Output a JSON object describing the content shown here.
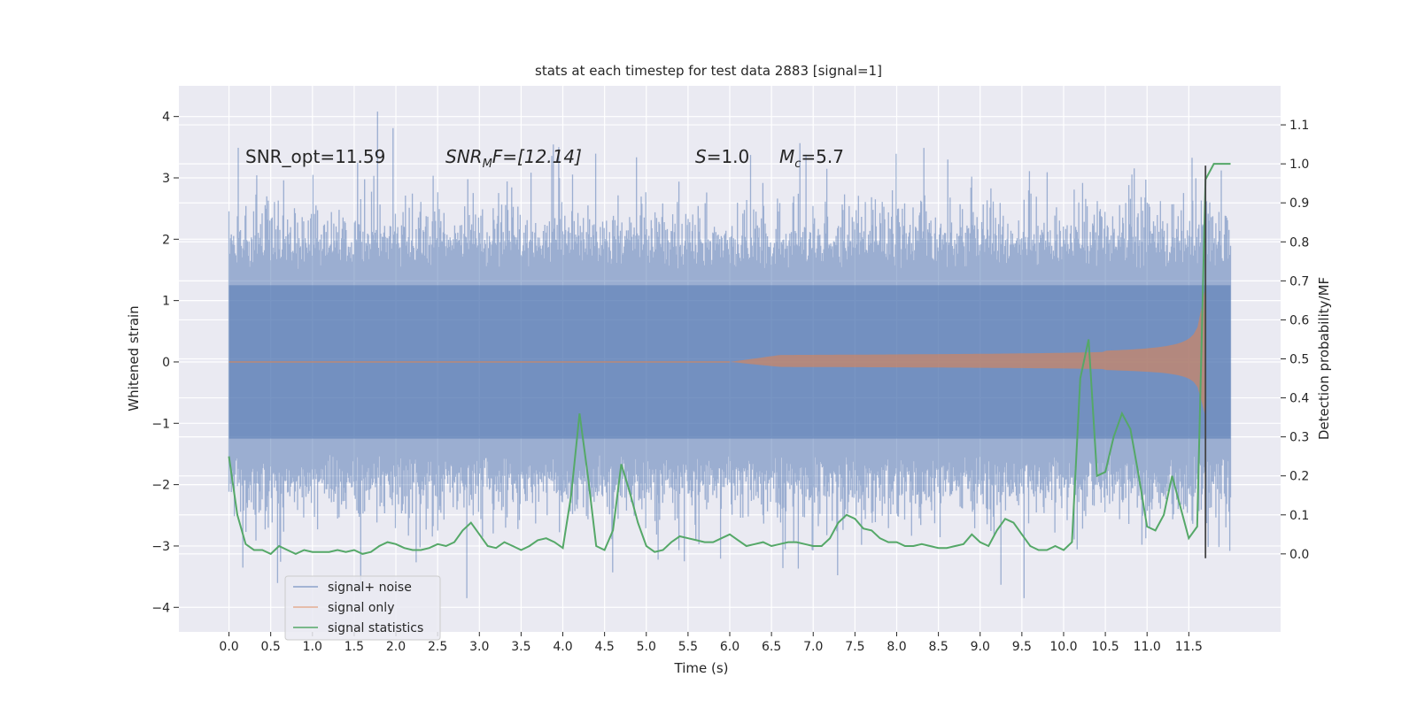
{
  "chart_data": {
    "type": "line",
    "title": "stats at each timestep for test data 2883 [signal=1]",
    "xlabel": "Time (s)",
    "ylabel": "Whitened strain",
    "y2label": "Detection probability/MF",
    "xlim": [
      -0.6,
      12.6
    ],
    "ylim": [
      -4.4,
      4.5
    ],
    "y2lim": [
      -0.2,
      1.2
    ],
    "xticks": [
      0.0,
      0.5,
      1.0,
      1.5,
      2.0,
      2.5,
      3.0,
      3.5,
      4.0,
      4.5,
      5.0,
      5.5,
      6.0,
      6.5,
      7.0,
      7.5,
      8.0,
      8.5,
      9.0,
      9.5,
      10.0,
      10.5,
      11.0,
      11.5
    ],
    "xtick_labels": [
      "0.0",
      "0.5",
      "1.0",
      "1.5",
      "2.0",
      "2.5",
      "3.0",
      "3.5",
      "4.0",
      "4.5",
      "5.0",
      "5.5",
      "6.0",
      "6.5",
      "7.0",
      "7.5",
      "8.0",
      "8.5",
      "9.0",
      "9.5",
      "10.0",
      "10.5",
      "11.0",
      "11.5"
    ],
    "yticks": [
      -4,
      -3,
      -2,
      -1,
      0,
      1,
      2,
      3,
      4
    ],
    "ytick_labels": [
      "−4",
      "−3",
      "−2",
      "−1",
      "0",
      "1",
      "2",
      "3",
      "4"
    ],
    "y2ticks": [
      0.0,
      0.1,
      0.2,
      0.3,
      0.4,
      0.5,
      0.6,
      0.7,
      0.8,
      0.9,
      1.0,
      1.1
    ],
    "y2tick_labels": [
      "0.0",
      "0.1",
      "0.2",
      "0.3",
      "0.4",
      "0.5",
      "0.6",
      "0.7",
      "0.8",
      "0.9",
      "1.0",
      "1.1"
    ],
    "annotations": {
      "snr_opt": "SNR_opt=11.59",
      "snr_mf_main": "SNR",
      "snr_mf_sub": "M",
      "snr_mf_rest": "F=[12.14]",
      "s_var": "S",
      "s_val": "=1.0",
      "mc_var": "M",
      "mc_sub": "c",
      "mc_val": "=5.7"
    },
    "legend": {
      "position": "lower-left",
      "entries": [
        "signal+ noise",
        "signal only",
        "signal statistics"
      ]
    },
    "colors": {
      "noise": "#4c72b0",
      "signal": "#dd8452",
      "stats": "#55a868",
      "marker": "#444444",
      "background": "#eaeaf2"
    },
    "series": [
      {
        "name": "signal+ noise",
        "kind": "noise-envelope",
        "t_start": 0.0,
        "t_end": 12.0,
        "typical_amplitude": 1.5,
        "max": 4.08,
        "min": -3.85
      },
      {
        "name": "signal only",
        "kind": "chirp-envelope",
        "t_start": 6.0,
        "t_merger": 11.7,
        "amplitude_at_merger": 1.3
      },
      {
        "name": "signal statistics",
        "axis": "right",
        "x": [
          0.0,
          0.1,
          0.2,
          0.3,
          0.4,
          0.5,
          0.6,
          0.7,
          0.8,
          0.9,
          1.0,
          1.1,
          1.2,
          1.3,
          1.4,
          1.5,
          1.6,
          1.7,
          1.8,
          1.9,
          2.0,
          2.1,
          2.2,
          2.3,
          2.4,
          2.5,
          2.6,
          2.7,
          2.8,
          2.9,
          3.0,
          3.1,
          3.2,
          3.3,
          3.4,
          3.5,
          3.6,
          3.7,
          3.8,
          3.9,
          4.0,
          4.1,
          4.2,
          4.3,
          4.4,
          4.5,
          4.6,
          4.7,
          4.8,
          4.9,
          5.0,
          5.1,
          5.2,
          5.3,
          5.4,
          5.5,
          5.6,
          5.7,
          5.8,
          5.9,
          6.0,
          6.1,
          6.2,
          6.3,
          6.4,
          6.5,
          6.6,
          6.7,
          6.8,
          6.9,
          7.0,
          7.1,
          7.2,
          7.3,
          7.4,
          7.5,
          7.6,
          7.7,
          7.8,
          7.9,
          8.0,
          8.1,
          8.2,
          8.3,
          8.4,
          8.5,
          8.6,
          8.7,
          8.8,
          8.9,
          9.0,
          9.1,
          9.2,
          9.3,
          9.4,
          9.5,
          9.6,
          9.7,
          9.8,
          9.9,
          10.0,
          10.1,
          10.2,
          10.3,
          10.4,
          10.5,
          10.6,
          10.7,
          10.8,
          10.9,
          11.0,
          11.1,
          11.2,
          11.3,
          11.4,
          11.5,
          11.6,
          11.7,
          11.8,
          11.9,
          12.0
        ],
        "values": [
          0.25,
          0.1,
          0.025,
          0.01,
          0.01,
          0.0,
          0.02,
          0.01,
          0.0,
          0.01,
          0.005,
          0.005,
          0.005,
          0.01,
          0.005,
          0.01,
          0.0,
          0.005,
          0.02,
          0.03,
          0.025,
          0.015,
          0.01,
          0.01,
          0.015,
          0.025,
          0.02,
          0.03,
          0.06,
          0.08,
          0.05,
          0.02,
          0.015,
          0.03,
          0.02,
          0.01,
          0.02,
          0.035,
          0.04,
          0.03,
          0.015,
          0.15,
          0.36,
          0.2,
          0.02,
          0.01,
          0.06,
          0.23,
          0.16,
          0.08,
          0.02,
          0.005,
          0.01,
          0.03,
          0.045,
          0.04,
          0.035,
          0.03,
          0.03,
          0.04,
          0.05,
          0.035,
          0.02,
          0.025,
          0.03,
          0.02,
          0.025,
          0.03,
          0.03,
          0.025,
          0.02,
          0.02,
          0.04,
          0.08,
          0.1,
          0.09,
          0.065,
          0.06,
          0.04,
          0.03,
          0.03,
          0.02,
          0.02,
          0.025,
          0.02,
          0.015,
          0.015,
          0.02,
          0.025,
          0.05,
          0.03,
          0.02,
          0.06,
          0.09,
          0.08,
          0.05,
          0.02,
          0.01,
          0.01,
          0.02,
          0.01,
          0.03,
          0.45,
          0.55,
          0.2,
          0.21,
          0.3,
          0.36,
          0.32,
          0.2,
          0.07,
          0.06,
          0.1,
          0.2,
          0.12,
          0.04,
          0.07,
          0.96,
          1.0,
          1.0,
          1.0
        ]
      }
    ],
    "marker_x": 11.7
  }
}
